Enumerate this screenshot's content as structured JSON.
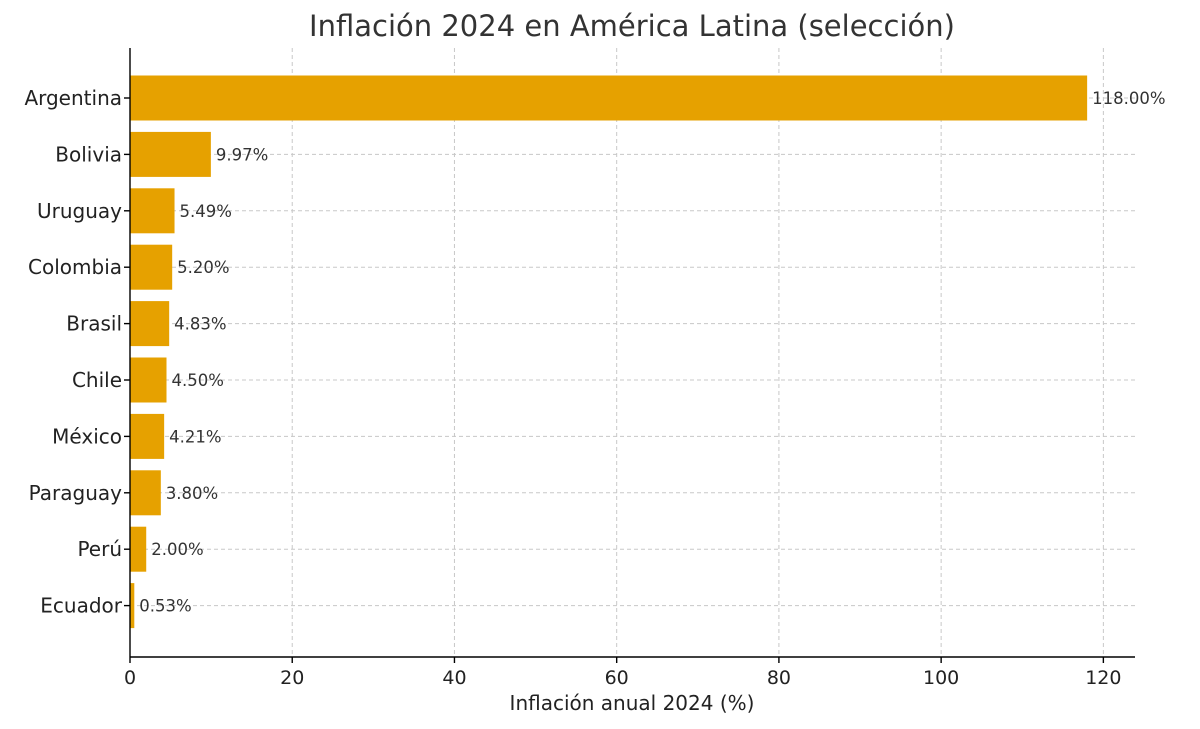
{
  "chart_data": {
    "type": "bar",
    "orientation": "horizontal",
    "title": "Inflación 2024 en América Latina (selección)",
    "xlabel": "Inflación anual 2024 (%)",
    "ylabel": "",
    "categories": [
      "Argentina",
      "Bolivia",
      "Uruguay",
      "Colombia",
      "Brasil",
      "Chile",
      "México",
      "Paraguay",
      "Perú",
      "Ecuador"
    ],
    "values": [
      118.0,
      9.97,
      5.49,
      5.2,
      4.83,
      4.5,
      4.21,
      3.8,
      2.0,
      0.53
    ],
    "value_labels": [
      "118.00%",
      "9.97%",
      "5.49%",
      "5.20%",
      "4.83%",
      "4.50%",
      "4.21%",
      "3.80%",
      "2.00%",
      "0.53%"
    ],
    "xlim": [
      0,
      123.9
    ],
    "xticks": [
      0,
      20,
      40,
      60,
      80,
      100,
      120
    ],
    "grid": true,
    "bar_color": "#E6A100"
  }
}
